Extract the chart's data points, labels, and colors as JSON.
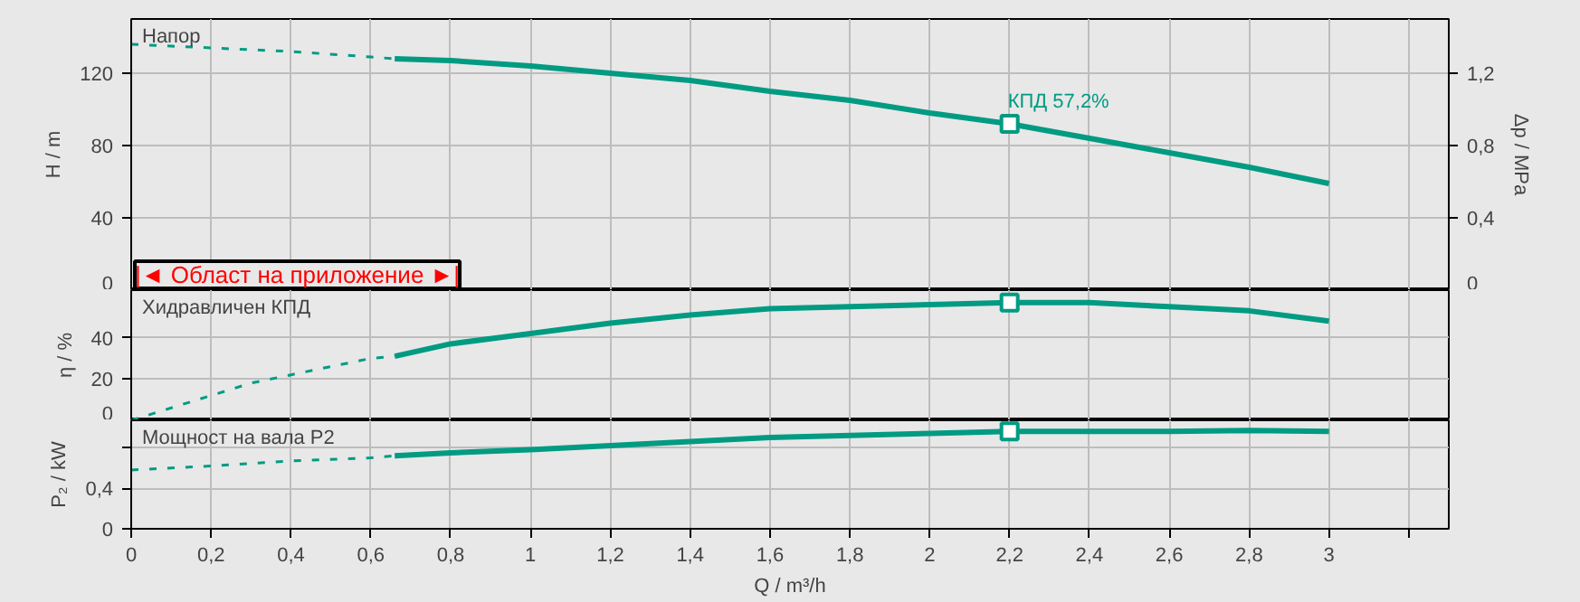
{
  "chart_data": [
    {
      "type": "line",
      "xlim": [
        0,
        3.3
      ],
      "xticks": [
        0,
        0.2,
        0.4,
        0.6,
        0.8,
        1,
        1.2,
        1.4,
        1.6,
        1.8,
        2,
        2.2,
        2.4,
        2.6,
        2.8,
        3,
        3.2
      ],
      "ylim": [
        0,
        150
      ],
      "yticks": [
        0,
        40,
        80,
        120
      ],
      "ylabel": "H / m",
      "y2lim": [
        0,
        1.5
      ],
      "y2ticks": [
        0,
        {
          "value": 0.4,
          "label": "0,4"
        },
        {
          "value": 0.8,
          "label": "0,8"
        },
        {
          "value": 1.2,
          "label": "1,2"
        }
      ],
      "y2label": "Δp / MPa",
      "grid": true,
      "tick_labels": "y",
      "series": [
        {
          "color": "#009b82",
          "line_style": "dashed",
          "x": [
            0,
            0.2,
            0.4,
            0.6,
            0.66
          ],
          "values": [
            136,
            134,
            132,
            129,
            128
          ]
        },
        {
          "color": "#009b82",
          "line_style": "solid",
          "x": [
            0.66,
            0.8,
            1.0,
            1.2,
            1.4,
            1.6,
            1.8,
            2.0,
            2.2,
            2.4,
            2.6,
            2.8,
            3.0
          ],
          "values": [
            128,
            127,
            124,
            120,
            116,
            110,
            105,
            98,
            92,
            84,
            76,
            68,
            59
          ]
        },
        {
          "type": "scatter",
          "marker": "square",
          "color": "#009b82",
          "x": [
            2.2
          ],
          "values": [
            92
          ]
        }
      ],
      "annotations": [
        "Напор",
        "|◄ Област на приложение ►|",
        {
          "text": "КПД  57,2%",
          "x": 2.2,
          "y": 92
        }
      ]
    },
    {
      "type": "line",
      "xlim": [
        0,
        3.3
      ],
      "xticks": [
        0,
        0.2,
        0.4,
        0.6,
        0.8,
        1,
        1.2,
        1.4,
        1.6,
        1.8,
        2,
        2.2,
        2.4,
        2.6,
        2.8,
        3,
        3.2
      ],
      "ylim": [
        0,
        63
      ],
      "yticks": [
        0,
        20,
        40
      ],
      "ylabel": "η / %",
      "grid": true,
      "tick_labels": "y",
      "series": [
        {
          "color": "#009b82",
          "line_style": "dashed",
          "x": [
            0,
            0.2,
            0.3,
            0.4,
            0.5,
            0.6,
            0.66
          ],
          "values": [
            0,
            12,
            18,
            22,
            26,
            30,
            31
          ]
        },
        {
          "color": "#009b82",
          "line_style": "solid",
          "x": [
            0.66,
            0.8,
            1.0,
            1.2,
            1.4,
            1.6,
            1.8,
            2.0,
            2.2,
            2.4,
            2.6,
            2.8,
            3.0
          ],
          "values": [
            31,
            37,
            42,
            47,
            51,
            54,
            55,
            56,
            57,
            57,
            55,
            53,
            48
          ]
        },
        {
          "type": "scatter",
          "marker": "square",
          "color": "#009b82",
          "x": [
            2.2
          ],
          "values": [
            57
          ]
        }
      ],
      "annotations": [
        "Хидравличен КПД"
      ]
    },
    {
      "type": "line",
      "xlim": [
        0,
        3.3
      ],
      "xticks": [
        0,
        {
          "value": 0.2,
          "label": "0,2"
        },
        {
          "value": 0.4,
          "label": "0,4"
        },
        {
          "value": 0.6,
          "label": "0,6"
        },
        {
          "value": 0.8,
          "label": "0,8"
        },
        1,
        {
          "value": 1.2,
          "label": "1,2"
        },
        {
          "value": 1.4,
          "label": "1,4"
        },
        {
          "value": 1.6,
          "label": "1,6"
        },
        {
          "value": 1.8,
          "label": "1,8"
        },
        2,
        {
          "value": 2.2,
          "label": "2,2"
        },
        {
          "value": 2.4,
          "label": "2,4"
        },
        {
          "value": 2.6,
          "label": "2,6"
        },
        {
          "value": 2.8,
          "label": "2,8"
        },
        3,
        {
          "value": 3.2,
          "label": null
        }
      ],
      "ylim": [
        0,
        1.07
      ],
      "yticks": [
        0,
        {
          "value": 0.4,
          "label": "0,4"
        },
        {
          "value": 0.8,
          "label": null
        }
      ],
      "ylabel": "P₂ / kW",
      "xlabel": "Q / m³/h",
      "grid": true,
      "series": [
        {
          "color": "#009b82",
          "line_style": "dashed",
          "x": [
            0,
            0.2,
            0.4,
            0.6,
            0.66
          ],
          "values": [
            0.58,
            0.62,
            0.67,
            0.7,
            0.72
          ]
        },
        {
          "color": "#009b82",
          "line_style": "solid",
          "x": [
            0.66,
            0.8,
            1.0,
            1.2,
            1.4,
            1.6,
            1.8,
            2.0,
            2.2,
            2.6,
            2.8,
            3.0
          ],
          "values": [
            0.72,
            0.75,
            0.78,
            0.82,
            0.86,
            0.9,
            0.92,
            0.94,
            0.96,
            0.96,
            0.97,
            0.96
          ]
        },
        {
          "type": "scatter",
          "marker": "square",
          "color": "#009b82",
          "x": [
            2.2
          ],
          "values": [
            0.96
          ]
        }
      ],
      "annotations": [
        "Мощност на вала P2"
      ]
    }
  ]
}
